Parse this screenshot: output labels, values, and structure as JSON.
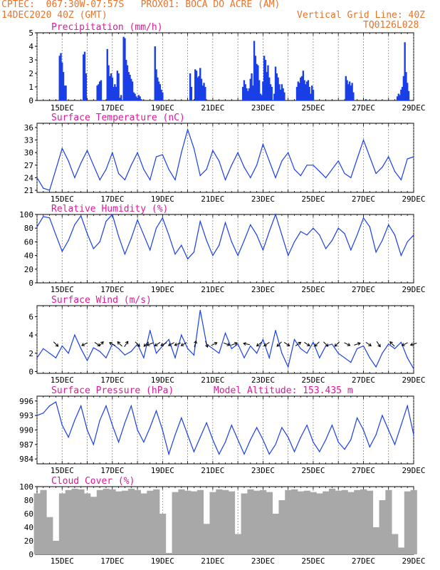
{
  "header": {
    "line1": "CPTEC:  067:30W-07:57S   PROX01: BOCA DO ACRE (AM)",
    "date": "14DEC2020 40Z (GMT)",
    "grid_note": "Vertical Grid Line: 40Z",
    "code": "TQ0126L028"
  },
  "colors": {
    "header": "#e8742a",
    "title": "#e0189a",
    "series": "#1a3fe6",
    "cloud": "#a8a8a8",
    "grid": "#777777"
  },
  "x_axis": {
    "range_days": [
      14.0,
      29.0
    ],
    "tick_days": [
      15,
      17,
      19,
      21,
      23,
      25,
      27,
      29
    ],
    "tick_labels": [
      "15DEC",
      "17DEC",
      "19DEC",
      "21DEC",
      "23DEC",
      "25DEC",
      "27DEC",
      "29DEC"
    ],
    "minor_step_days": 0.25
  },
  "chart_data": [
    {
      "type": "bar",
      "id": "precip",
      "title": "Precipitation (mm/h)",
      "ylim": [
        0,
        5
      ],
      "yticks": [
        0,
        1,
        2,
        3,
        4,
        5
      ],
      "x_days": [
        14.9,
        14.95,
        15.0,
        15.05,
        15.1,
        15.15,
        15.85,
        15.9,
        15.95,
        16.4,
        16.45,
        16.5,
        16.55,
        16.8,
        16.85,
        16.9,
        16.95,
        17.0,
        17.05,
        17.1,
        17.15,
        17.2,
        17.25,
        17.3,
        17.35,
        17.45,
        17.5,
        17.55,
        17.6,
        17.65,
        17.7,
        17.75,
        17.8,
        17.85,
        17.9,
        17.95,
        18.0,
        18.05,
        18.1,
        18.15,
        18.7,
        18.75,
        18.8,
        18.85,
        18.9,
        18.95,
        19.0,
        20.1,
        20.15,
        20.3,
        20.35,
        20.4,
        20.45,
        20.5,
        20.55,
        20.6,
        20.65,
        20.7,
        22.2,
        22.25,
        22.3,
        22.35,
        22.4,
        22.45,
        22.5,
        22.55,
        22.6,
        22.65,
        22.7,
        22.75,
        22.8,
        22.85,
        22.9,
        22.95,
        23.0,
        23.05,
        23.1,
        23.15,
        23.2,
        23.25,
        23.3,
        23.35,
        23.45,
        23.5,
        23.55,
        23.6,
        23.65,
        23.7,
        23.75,
        23.8,
        23.85,
        24.35,
        24.4,
        24.45,
        24.5,
        24.55,
        24.6,
        24.65,
        24.7,
        24.75,
        24.8,
        24.85,
        24.9,
        24.95,
        25.0,
        26.3,
        26.35,
        26.4,
        26.45,
        26.5,
        26.55,
        26.6,
        27.1,
        28.35,
        28.4,
        28.45,
        28.5,
        28.55,
        28.6,
        28.65,
        28.7,
        28.75,
        28.8
      ],
      "values": [
        3.3,
        3.5,
        2.8,
        2.1,
        1.1,
        1.1,
        3.4,
        3.6,
        2.0,
        1.1,
        1.2,
        1.4,
        1.5,
        3.8,
        2.6,
        1.8,
        2.0,
        1.7,
        1.0,
        1.2,
        1.0,
        2.2,
        2.0,
        0.2,
        0.4,
        4.7,
        4.6,
        3.0,
        2.6,
        2.1,
        1.9,
        1.6,
        1.4,
        0.6,
        0.5,
        0.3,
        0.2,
        0.4,
        0.3,
        0.1,
        4.0,
        2.3,
        1.7,
        1.4,
        1.2,
        0.8,
        0.6,
        2.0,
        1.0,
        2.3,
        2.2,
        1.7,
        1.8,
        2.4,
        1.6,
        1.1,
        1.3,
        1.0,
        1.0,
        1.5,
        1.2,
        0.9,
        0.7,
        0.9,
        1.6,
        2.0,
        1.1,
        4.4,
        3.3,
        2.7,
        2.6,
        1.5,
        0.5,
        0.4,
        1.4,
        3.3,
        3.0,
        2.1,
        2.6,
        1.7,
        1.2,
        1.0,
        0.5,
        2.5,
        2.0,
        1.7,
        1.2,
        0.8,
        1.2,
        0.9,
        0.6,
        1.0,
        1.4,
        1.3,
        1.7,
        1.8,
        2.2,
        1.5,
        1.2,
        1.4,
        1.5,
        1.0,
        0.5,
        1.1,
        0.8,
        1.8,
        1.5,
        1.2,
        1.4,
        1.1,
        1.3,
        0.6,
        0.1,
        0.3,
        0.5,
        0.4,
        0.8,
        1.0,
        1.8,
        4.3,
        2.1,
        1.3,
        0.7
      ]
    },
    {
      "type": "line",
      "id": "temp",
      "title": "Surface Temperature (nC)",
      "ylim": [
        20.5,
        37
      ],
      "yticks": [
        21,
        24,
        27,
        30,
        33,
        36
      ],
      "x_days": [
        14.0,
        14.25,
        14.5,
        14.75,
        15.0,
        15.25,
        15.5,
        15.75,
        16.0,
        16.25,
        16.5,
        16.75,
        17.0,
        17.25,
        17.5,
        17.75,
        18.0,
        18.25,
        18.5,
        18.75,
        19.0,
        19.25,
        19.5,
        19.75,
        20.0,
        20.25,
        20.5,
        20.75,
        21.0,
        21.25,
        21.5,
        21.75,
        22.0,
        22.25,
        22.5,
        22.75,
        23.0,
        23.25,
        23.5,
        23.75,
        24.0,
        24.25,
        24.5,
        24.75,
        25.0,
        25.25,
        25.5,
        25.75,
        26.0,
        26.25,
        26.5,
        26.75,
        27.0,
        27.25,
        27.5,
        27.75,
        28.0,
        28.25,
        28.5,
        28.75,
        29.0
      ],
      "values": [
        24,
        21.5,
        21,
        26,
        31,
        28,
        24,
        27.5,
        30.5,
        27,
        23.5,
        26,
        30,
        25,
        23.5,
        27,
        30,
        26,
        23.5,
        29,
        29.5,
        26,
        23.5,
        30,
        35.5,
        31,
        24.5,
        26,
        30.5,
        28,
        23.5,
        27,
        30,
        26.5,
        24,
        27,
        32,
        28,
        24,
        28,
        30,
        26,
        24.5,
        27,
        27,
        25.5,
        24,
        26,
        28,
        25,
        24,
        28.5,
        33,
        29,
        25,
        26.5,
        29,
        25.5,
        23.5,
        28.5,
        29
      ]
    },
    {
      "type": "line",
      "id": "rh",
      "title": "Relative Humidity (%)",
      "ylim": [
        0,
        100
      ],
      "yticks": [
        0,
        20,
        40,
        60,
        80,
        100
      ],
      "x_days": [
        14.0,
        14.25,
        14.5,
        14.75,
        15.0,
        15.25,
        15.5,
        15.75,
        16.0,
        16.25,
        16.5,
        16.75,
        17.0,
        17.25,
        17.5,
        17.75,
        18.0,
        18.25,
        18.5,
        18.75,
        19.0,
        19.25,
        19.5,
        19.75,
        20.0,
        20.25,
        20.5,
        20.75,
        21.0,
        21.25,
        21.5,
        21.75,
        22.0,
        22.25,
        22.5,
        22.75,
        23.0,
        23.25,
        23.5,
        23.75,
        24.0,
        24.25,
        24.5,
        24.75,
        25.0,
        25.25,
        25.5,
        25.75,
        26.0,
        26.25,
        26.5,
        26.75,
        27.0,
        27.25,
        27.5,
        27.75,
        28.0,
        28.25,
        28.5,
        28.75,
        29.0
      ],
      "values": [
        82,
        97,
        95,
        70,
        46,
        62,
        85,
        98,
        72,
        50,
        60,
        90,
        100,
        68,
        42,
        65,
        92,
        70,
        48,
        80,
        95,
        70,
        42,
        55,
        35,
        45,
        90,
        62,
        40,
        55,
        88,
        60,
        40,
        62,
        85,
        70,
        48,
        75,
        100,
        70,
        40,
        60,
        75,
        70,
        80,
        70,
        50,
        62,
        80,
        72,
        48,
        70,
        95,
        82,
        45,
        62,
        85,
        70,
        40,
        60,
        70
      ]
    },
    {
      "type": "line",
      "id": "wind",
      "title": "Surface Wind (m/s)",
      "ylim": [
        -0.2,
        7.2
      ],
      "yticks": [
        0,
        2,
        4,
        6
      ],
      "x_days": [
        14.0,
        14.25,
        14.5,
        14.75,
        15.0,
        15.25,
        15.5,
        15.75,
        16.0,
        16.25,
        16.5,
        16.75,
        17.0,
        17.25,
        17.5,
        17.75,
        18.0,
        18.25,
        18.5,
        18.75,
        19.0,
        19.25,
        19.5,
        19.75,
        20.0,
        20.25,
        20.5,
        20.75,
        21.0,
        21.25,
        21.5,
        21.75,
        22.0,
        22.25,
        22.5,
        22.75,
        23.0,
        23.25,
        23.5,
        23.75,
        24.0,
        24.25,
        24.5,
        24.75,
        25.0,
        25.25,
        25.5,
        25.75,
        26.0,
        26.25,
        26.5,
        26.75,
        27.0,
        27.25,
        27.5,
        27.75,
        28.0,
        28.25,
        28.5,
        28.75,
        29.0
      ],
      "values": [
        1.5,
        2.5,
        2.0,
        1.5,
        2.8,
        2.0,
        4.0,
        2.5,
        1.2,
        2.6,
        2.2,
        1.5,
        3.0,
        2.5,
        1.8,
        2.2,
        3.0,
        1.5,
        4.5,
        2.0,
        2.8,
        3.5,
        1.5,
        4.0,
        2.5,
        1.8,
        6.7,
        3.0,
        2.5,
        2.0,
        4.2,
        2.5,
        3.0,
        1.5,
        2.8,
        2.0,
        3.5,
        1.5,
        4.5,
        2.0,
        0.5,
        3.5,
        2.5,
        2.0,
        3.2,
        1.5,
        2.8,
        3.0,
        2.0,
        1.5,
        1.0,
        2.5,
        2.8,
        1.5,
        0.5,
        2.0,
        3.0,
        2.5,
        3.2,
        1.5,
        0.3
      ],
      "vectors": {
        "x_days": [
          14.75,
          15.9,
          16.4,
          16.55,
          17.0,
          17.3,
          17.55,
          18.0,
          18.35,
          18.5,
          18.8,
          19.05,
          19.35,
          19.6,
          19.85,
          20.3,
          20.75,
          21.05,
          21.55,
          21.85,
          22.35,
          22.85,
          23.15,
          23.65,
          23.95,
          24.4,
          24.75,
          25.15,
          25.5,
          25.95,
          26.35,
          26.75,
          27.2,
          27.6,
          28.15,
          28.65,
          29.0
        ],
        "u": [
          2,
          -2,
          1.5,
          1,
          -2,
          -1.5,
          1,
          1,
          -1,
          -2.5,
          -1.5,
          -2,
          -1.8,
          -2,
          -1.8,
          0.5,
          0.5,
          2,
          2.5,
          2.5,
          -2.5,
          -1.5,
          -1.5,
          -1,
          1.5,
          1.5,
          1.5,
          -1,
          1.5,
          -1.2,
          2,
          3,
          2.2,
          1,
          -1,
          -2,
          -3
        ],
        "v": [
          -2,
          -1,
          -1,
          1,
          1,
          1.5,
          1.5,
          -1,
          -1,
          -1,
          -1,
          -1,
          -1,
          -0.8,
          -1,
          1.8,
          -1.5,
          1,
          -1,
          1,
          0.5,
          -1.2,
          -1,
          -1,
          -1,
          1,
          -1,
          -1,
          -1.5,
          -1.2,
          -1,
          1,
          -1.5,
          -1.5,
          1,
          -1,
          -1
        ]
      }
    },
    {
      "type": "line",
      "id": "press",
      "title": "Surface Pressure (hPa)",
      "annotation": "Model Altitude: 153.435 m",
      "ylim": [
        983,
        997
      ],
      "yticks": [
        984,
        987,
        990,
        993,
        996
      ],
      "x_days": [
        14.0,
        14.25,
        14.5,
        14.75,
        15.0,
        15.25,
        15.5,
        15.75,
        16.0,
        16.25,
        16.5,
        16.75,
        17.0,
        17.25,
        17.5,
        17.75,
        18.0,
        18.25,
        18.5,
        18.75,
        19.0,
        19.25,
        19.5,
        19.75,
        20.0,
        20.25,
        20.5,
        20.75,
        21.0,
        21.25,
        21.5,
        21.75,
        22.0,
        22.25,
        22.5,
        22.75,
        23.0,
        23.25,
        23.5,
        23.75,
        24.0,
        24.25,
        24.5,
        24.75,
        25.0,
        25.25,
        25.5,
        25.75,
        26.0,
        26.25,
        26.5,
        26.75,
        27.0,
        27.25,
        27.5,
        27.75,
        28.0,
        28.25,
        28.5,
        28.75,
        29.0
      ],
      "values": [
        993,
        993.5,
        995,
        995.8,
        991,
        988.5,
        992,
        995,
        990,
        987,
        992,
        995,
        991,
        987.5,
        991.5,
        995,
        990,
        987.5,
        990.5,
        994,
        990,
        985,
        989,
        992.5,
        989,
        985.5,
        988.5,
        991.5,
        988,
        985,
        987.5,
        991,
        988,
        985,
        988,
        990.5,
        988,
        985,
        987,
        990.5,
        988.5,
        985.5,
        988.5,
        991,
        987.5,
        985.5,
        988,
        991,
        987.5,
        986,
        988,
        992.5,
        990,
        986.5,
        989,
        993,
        990,
        987,
        991,
        995,
        989
      ]
    },
    {
      "type": "bar",
      "id": "cloud",
      "title": "Cloud Cover (%)",
      "ylim": [
        0,
        100
      ],
      "yticks": [
        0,
        20,
        40,
        60,
        80,
        100
      ],
      "x_days": [
        14.0,
        14.25,
        14.5,
        14.75,
        15.0,
        15.25,
        15.5,
        15.75,
        16.0,
        16.25,
        16.5,
        16.75,
        17.0,
        17.25,
        17.5,
        17.75,
        18.0,
        18.25,
        18.5,
        18.75,
        19.0,
        19.25,
        19.5,
        19.75,
        20.0,
        20.25,
        20.5,
        20.75,
        21.0,
        21.25,
        21.5,
        21.75,
        22.0,
        22.25,
        22.5,
        22.75,
        23.0,
        23.25,
        23.5,
        23.75,
        24.0,
        24.25,
        24.5,
        24.75,
        25.0,
        25.25,
        25.5,
        25.75,
        26.0,
        26.25,
        26.5,
        26.75,
        27.0,
        27.25,
        27.5,
        27.75,
        28.0,
        28.25,
        28.5,
        28.75,
        29.0
      ],
      "values": [
        90,
        95,
        55,
        20,
        90,
        95,
        97,
        96,
        90,
        85,
        95,
        97,
        96,
        93,
        94,
        97,
        95,
        90,
        94,
        96,
        60,
        2,
        92,
        96,
        94,
        93,
        95,
        45,
        92,
        96,
        95,
        93,
        30,
        90,
        96,
        94,
        95,
        92,
        60,
        80,
        95,
        96,
        93,
        94,
        92,
        90,
        93,
        97,
        94,
        95,
        92,
        95,
        96,
        94,
        40,
        80,
        95,
        30,
        10,
        93,
        95
      ]
    }
  ]
}
